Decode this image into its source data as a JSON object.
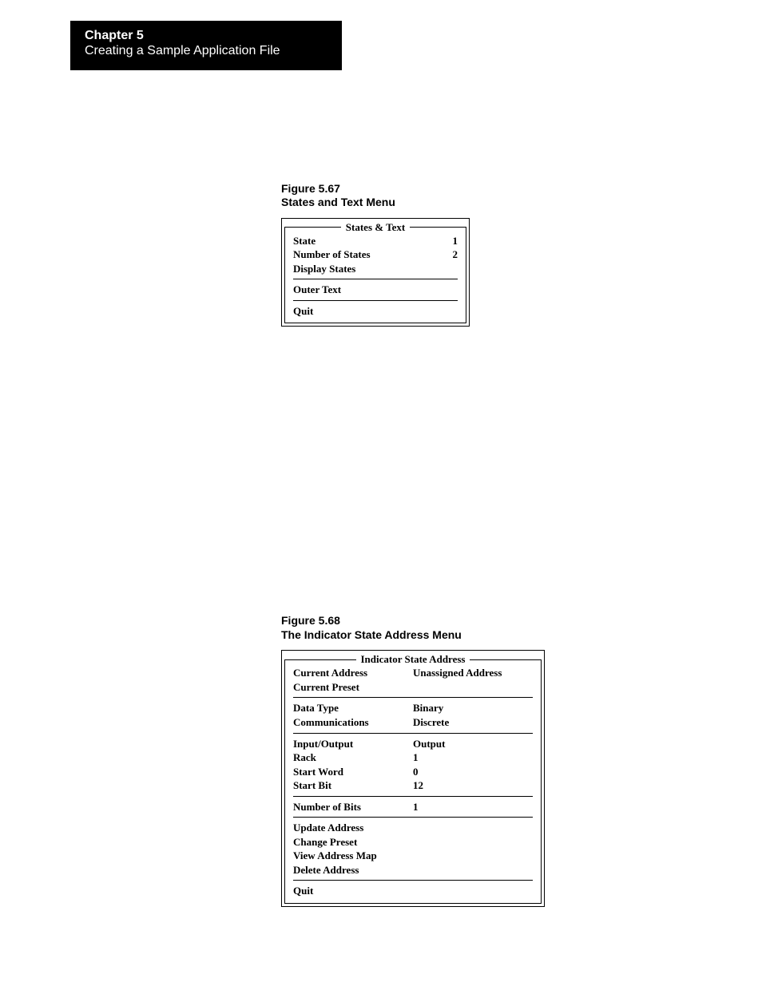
{
  "header": {
    "chapter": "Chapter 5",
    "subtitle": "Creating a Sample Application File"
  },
  "fig1": {
    "label_line1": "Figure 5.67",
    "label_line2": "States and Text Menu",
    "legend": "States & Text",
    "rows_a": [
      {
        "label": "State",
        "val": "1"
      },
      {
        "label": "Number of States",
        "val": "2"
      },
      {
        "label": "Display States",
        "val": ""
      }
    ],
    "rows_b": [
      {
        "label": "Outer Text",
        "val": ""
      }
    ],
    "rows_c": [
      {
        "label": "Quit",
        "val": ""
      }
    ]
  },
  "fig2": {
    "label_line1": "Figure 5.68",
    "label_line2": "The Indicator State Address Menu",
    "legend": "Indicator State Address",
    "sec1": [
      {
        "label": "Current Address",
        "val": "Unassigned Address"
      },
      {
        "label": "Current Preset",
        "val": ""
      }
    ],
    "sec2": [
      {
        "label": "Data Type",
        "val": "Binary"
      },
      {
        "label": "Communications",
        "val": "Discrete"
      }
    ],
    "sec3": [
      {
        "label": "Input/Output",
        "val": "Output"
      },
      {
        "label": "Rack",
        "val": "1"
      },
      {
        "label": "Start Word",
        "val": "0"
      },
      {
        "label": "Start Bit",
        "val": "12"
      }
    ],
    "sec4": [
      {
        "label": "Number of Bits",
        "val": "1"
      }
    ],
    "sec5": [
      {
        "label": "Update Address",
        "val": ""
      },
      {
        "label": "Change Preset",
        "val": ""
      },
      {
        "label": "View Address Map",
        "val": ""
      },
      {
        "label": "Delete Address",
        "val": ""
      }
    ],
    "sec6": [
      {
        "label": "Quit",
        "val": ""
      }
    ]
  }
}
